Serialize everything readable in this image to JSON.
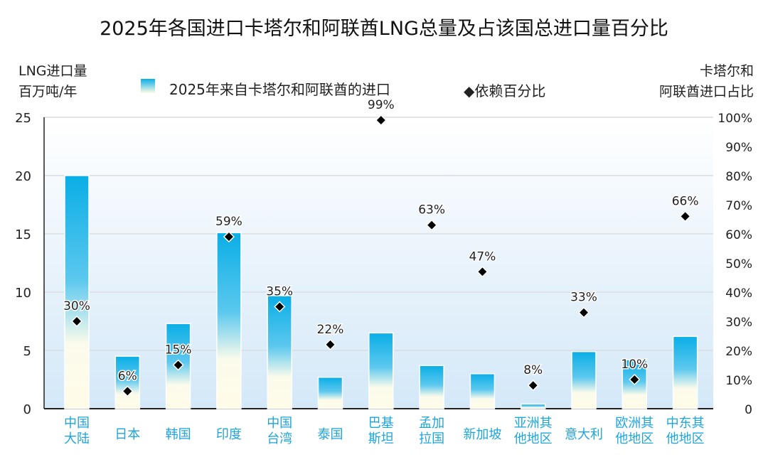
{
  "chart_data": {
    "type": "bar",
    "title": "2025年各国进口卡塔尔和阿联酋LNG总量及占该国总进口量百分比",
    "ylabel_left": [
      "LNG进口量",
      "百万吨/年"
    ],
    "ylabel_right": [
      "卡塔尔和",
      "阿联酋进口占比"
    ],
    "legend": {
      "bar": "2025年来自卡塔尔和阿联酋的进口",
      "marker": "◆依赖百分比",
      "placement": "top"
    },
    "ylim_left": [
      0,
      25
    ],
    "yticks_left": [
      "0",
      "5",
      "10",
      "15",
      "20",
      "25"
    ],
    "ylim_right": [
      0,
      100
    ],
    "yticks_right": [
      "0",
      "10%",
      "20%",
      "30%",
      "40%",
      "50%",
      "60%",
      "70%",
      "80%",
      "90%",
      "100%"
    ],
    "grid": true,
    "categories": [
      [
        "中国",
        "大陆"
      ],
      [
        "日本"
      ],
      [
        "韩国"
      ],
      [
        "印度"
      ],
      [
        "中国",
        "台湾"
      ],
      [
        "泰国"
      ],
      [
        "巴基",
        "斯坦"
      ],
      [
        "孟加",
        "拉国"
      ],
      [
        "新加坡"
      ],
      [
        "亚洲其",
        "他地区"
      ],
      [
        "意大利"
      ],
      [
        "欧洲其",
        "他地区"
      ],
      [
        "中东其",
        "他地区"
      ]
    ],
    "series": [
      {
        "name": "2025年来自卡塔尔和阿联酋的进口",
        "type": "bar",
        "values": [
          20.0,
          4.5,
          7.3,
          15.1,
          9.7,
          2.7,
          6.5,
          3.7,
          3.0,
          0.4,
          4.9,
          4.2,
          6.2
        ]
      },
      {
        "name": "依赖百分比",
        "type": "scatter",
        "values": [
          30,
          6,
          15,
          59,
          35,
          22,
          99,
          63,
          47,
          8,
          33,
          10,
          66
        ],
        "labels": [
          "30%",
          "6%",
          "15%",
          "59%",
          "35%",
          "22%",
          "99%",
          "63%",
          "47%",
          "8%",
          "33%",
          "10%",
          "66%"
        ]
      }
    ],
    "colors": {
      "bar_top": "#0aaee6",
      "bar_bottom": "#fffce8",
      "category_text": "#1ea5dc",
      "marker": "#000000"
    }
  }
}
